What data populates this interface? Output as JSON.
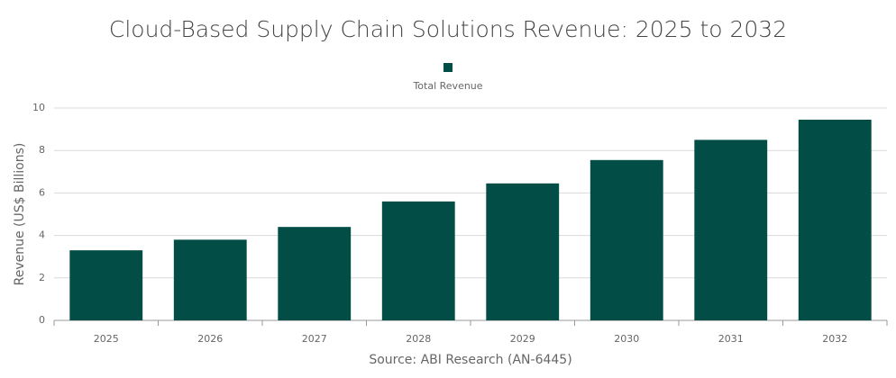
{
  "chart_data": {
    "type": "bar",
    "title": "Cloud-Based Supply Chain Solutions Revenue: 2025 to 2032",
    "categories": [
      "2025",
      "2026",
      "2027",
      "2028",
      "2029",
      "2030",
      "2031",
      "2032"
    ],
    "series": [
      {
        "name": "Total Revenue",
        "color": "#034d47",
        "values": [
          3.3,
          3.8,
          4.4,
          5.6,
          6.45,
          7.55,
          8.5,
          9.45
        ]
      }
    ],
    "y_label": "Revenue (US$ Billions)",
    "source": "Source: ABI Research (AN-6445)",
    "ylim": [
      0,
      10
    ],
    "yticks": [
      0,
      2,
      4,
      6,
      8,
      10
    ],
    "grid": true,
    "legend": "top"
  }
}
